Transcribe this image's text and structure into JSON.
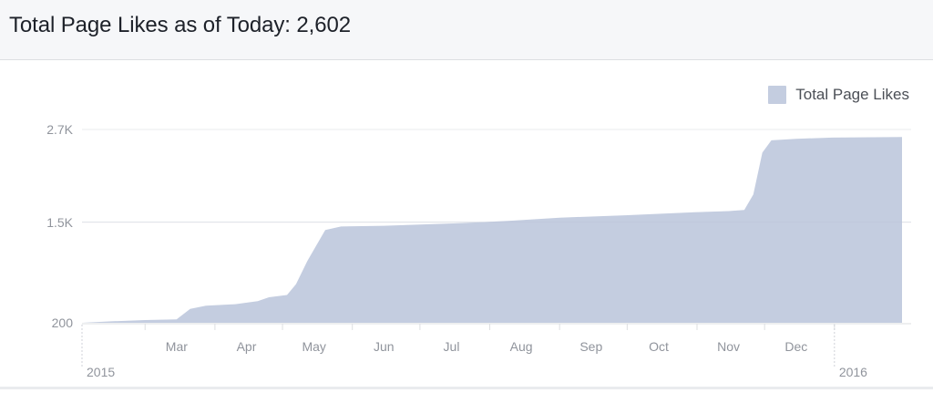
{
  "header": {
    "title": "Total Page Likes as of Today: 2,602"
  },
  "legend": {
    "label": "Total Page Likes",
    "color": "#c4cde0"
  },
  "chart_data": {
    "type": "area",
    "title": "Total Page Likes as of Today: 2,602",
    "series": [
      {
        "name": "Total Page Likes",
        "color": "#c4cde0",
        "points": [
          [
            "2015-02-01",
            200
          ],
          [
            "2015-02-15",
            220
          ],
          [
            "2015-03-01",
            235
          ],
          [
            "2015-03-15",
            245
          ],
          [
            "2015-03-21",
            380
          ],
          [
            "2015-03-28",
            420
          ],
          [
            "2015-04-10",
            440
          ],
          [
            "2015-04-20",
            480
          ],
          [
            "2015-04-25",
            530
          ],
          [
            "2015-05-03",
            560
          ],
          [
            "2015-05-07",
            700
          ],
          [
            "2015-05-12",
            1000
          ],
          [
            "2015-05-20",
            1400
          ],
          [
            "2015-05-27",
            1445
          ],
          [
            "2015-06-15",
            1455
          ],
          [
            "2015-07-01",
            1470
          ],
          [
            "2015-07-20",
            1490
          ],
          [
            "2015-08-10",
            1520
          ],
          [
            "2015-09-01",
            1560
          ],
          [
            "2015-09-30",
            1590
          ],
          [
            "2015-10-31",
            1630
          ],
          [
            "2015-11-15",
            1645
          ],
          [
            "2015-11-22",
            1660
          ],
          [
            "2015-11-26",
            1860
          ],
          [
            "2015-11-30",
            2400
          ],
          [
            "2015-12-04",
            2560
          ],
          [
            "2015-12-15",
            2580
          ],
          [
            "2015-12-31",
            2595
          ],
          [
            "2016-01-31",
            2602
          ]
        ]
      }
    ],
    "y_ticks": [
      "2.7K",
      "1.5K",
      "200"
    ],
    "y_tick_values": [
      2700,
      1500,
      200
    ],
    "ylim": [
      200,
      2700
    ],
    "x_ticks": [
      "Mar",
      "Apr",
      "May",
      "Jun",
      "Jul",
      "Aug",
      "Sep",
      "Oct",
      "Nov",
      "Dec"
    ],
    "x_years": [
      "2015",
      "2016"
    ],
    "xlim": [
      "2015-02-01",
      "2016-01-31"
    ],
    "grid": true,
    "legend_position": "top-right"
  }
}
